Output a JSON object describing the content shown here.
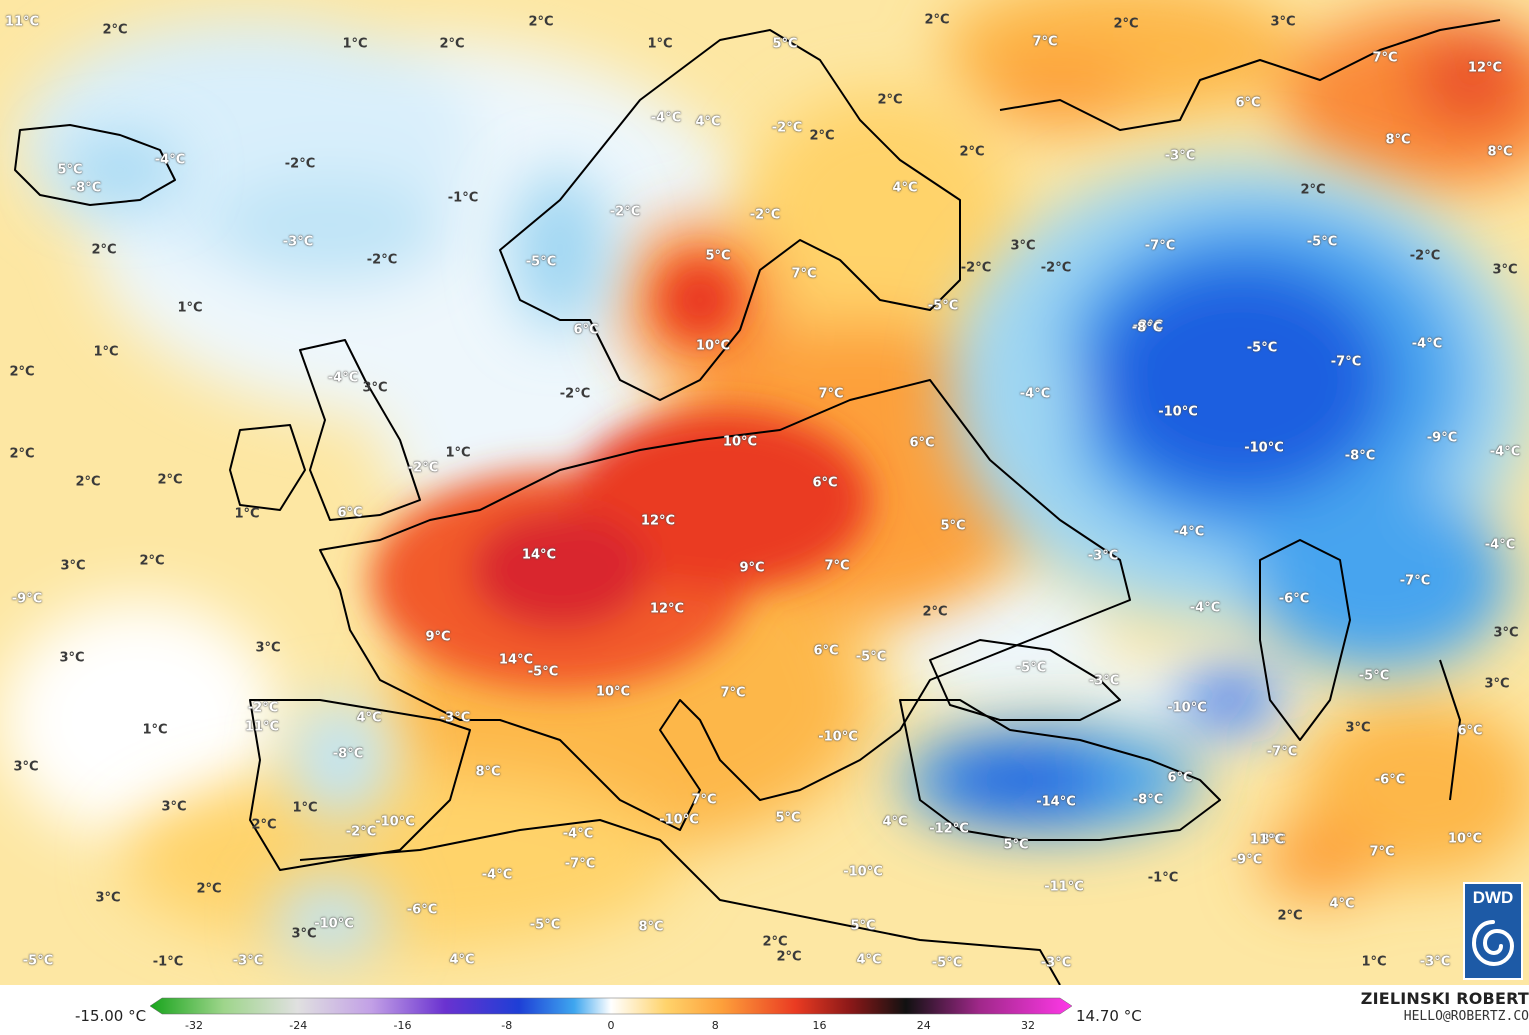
{
  "map": {
    "legend": {
      "min_label": "-15.00 °C",
      "max_label": "14.70 °C",
      "ticks": [
        "-32",
        "-24",
        "-16",
        "-8",
        "0",
        "8",
        "16",
        "24",
        "32"
      ]
    },
    "author": {
      "name": "ZIELINSKI ROBERT",
      "email": "HELLO@ROBERTZ.CO"
    },
    "logo": {
      "text": "DWD"
    },
    "colors": {
      "sea": "#eef7fc",
      "warm": "#ffd36b",
      "orange": "#fda03b",
      "hot": "#ea3b22",
      "cold": "#9fd6f2",
      "cold_deep": "#1e5fe0",
      "borders": "#000000"
    },
    "labels": [
      {
        "text": "11°C",
        "style": "light"
      },
      {
        "text": "2°C",
        "style": "dark"
      },
      {
        "text": "1°C",
        "style": "dark"
      },
      {
        "text": "2°C",
        "style": "dark"
      },
      {
        "text": "2°C",
        "style": "dark"
      },
      {
        "text": "1°C",
        "style": "dark"
      },
      {
        "text": "5°C",
        "style": "light"
      },
      {
        "text": "2°C",
        "style": "dark"
      },
      {
        "text": "7°C",
        "style": "light"
      },
      {
        "text": "2°C",
        "style": "dark"
      },
      {
        "text": "3°C",
        "style": "dark"
      },
      {
        "text": "7°C",
        "style": "light"
      },
      {
        "text": "12°C",
        "style": "light"
      },
      {
        "text": "6°C",
        "style": "light"
      },
      {
        "text": "8°C",
        "style": "light"
      },
      {
        "text": "8°C",
        "style": "light"
      },
      {
        "text": "5°C",
        "style": "light"
      },
      {
        "text": "-8°C",
        "style": "light"
      },
      {
        "text": "-4°C",
        "style": "light"
      },
      {
        "text": "-2°C",
        "style": "dark"
      },
      {
        "text": "-1°C",
        "style": "dark"
      },
      {
        "text": "-3°C",
        "style": "light"
      },
      {
        "text": "2°C",
        "style": "dark"
      },
      {
        "text": "-2°C",
        "style": "dark"
      },
      {
        "text": "-5°C",
        "style": "light"
      },
      {
        "text": "4°C",
        "style": "light"
      },
      {
        "text": "-4°C",
        "style": "light"
      },
      {
        "text": "-2°C",
        "style": "light"
      },
      {
        "text": "2°C",
        "style": "dark"
      },
      {
        "text": "2°C",
        "style": "dark"
      },
      {
        "text": "2°C",
        "style": "dark"
      },
      {
        "text": "-2°C",
        "style": "light"
      },
      {
        "text": "-2°C",
        "style": "light"
      },
      {
        "text": "4°C",
        "style": "light"
      },
      {
        "text": "-3°C",
        "style": "light"
      },
      {
        "text": "2°C",
        "style": "dark"
      },
      {
        "text": "-7°C",
        "style": "light"
      },
      {
        "text": "-5°C",
        "style": "light"
      },
      {
        "text": "-2°C",
        "style": "dark"
      },
      {
        "text": "3°C",
        "style": "dark"
      },
      {
        "text": "-8°C",
        "style": "light"
      },
      {
        "text": "5°C",
        "style": "light"
      },
      {
        "text": "7°C",
        "style": "light"
      },
      {
        "text": "3°C",
        "style": "dark"
      },
      {
        "text": "-2°C",
        "style": "dark"
      },
      {
        "text": "-2°C",
        "style": "dark"
      },
      {
        "text": "-5°C",
        "style": "light"
      },
      {
        "text": "6°C",
        "style": "light"
      },
      {
        "text": "10°C",
        "style": "light"
      },
      {
        "text": "1°C",
        "style": "dark"
      },
      {
        "text": "1°C",
        "style": "dark"
      },
      {
        "text": "-8°C",
        "style": "light"
      },
      {
        "text": "-5°C",
        "style": "light"
      },
      {
        "text": "-7°C",
        "style": "light"
      },
      {
        "text": "-4°C",
        "style": "light"
      },
      {
        "text": "2°C",
        "style": "dark"
      },
      {
        "text": "-4°C",
        "style": "light"
      },
      {
        "text": "3°C",
        "style": "dark"
      },
      {
        "text": "-2°C",
        "style": "dark"
      },
      {
        "text": "7°C",
        "style": "light"
      },
      {
        "text": "-4°C",
        "style": "light"
      },
      {
        "text": "-10°C",
        "style": "light"
      },
      {
        "text": "-10°C",
        "style": "light"
      },
      {
        "text": "-9°C",
        "style": "light"
      },
      {
        "text": "-8°C",
        "style": "light"
      },
      {
        "text": "2°C",
        "style": "dark"
      },
      {
        "text": "-2°C",
        "style": "light"
      },
      {
        "text": "1°C",
        "style": "dark"
      },
      {
        "text": "10°C",
        "style": "light"
      },
      {
        "text": "6°C",
        "style": "light"
      },
      {
        "text": "-4°C",
        "style": "light"
      },
      {
        "text": "2°C",
        "style": "dark"
      },
      {
        "text": "2°C",
        "style": "dark"
      },
      {
        "text": "1°C",
        "style": "dark"
      },
      {
        "text": "6°C",
        "style": "light"
      },
      {
        "text": "6°C",
        "style": "light"
      },
      {
        "text": "12°C",
        "style": "light"
      },
      {
        "text": "5°C",
        "style": "light"
      },
      {
        "text": "-4°C",
        "style": "light"
      },
      {
        "text": "-4°C",
        "style": "light"
      },
      {
        "text": "3°C",
        "style": "dark"
      },
      {
        "text": "2°C",
        "style": "dark"
      },
      {
        "text": "14°C",
        "style": "light"
      },
      {
        "text": "9°C",
        "style": "light"
      },
      {
        "text": "7°C",
        "style": "light"
      },
      {
        "text": "-3°C",
        "style": "light"
      },
      {
        "text": "-7°C",
        "style": "light"
      },
      {
        "text": "-9°C",
        "style": "light"
      },
      {
        "text": "12°C",
        "style": "light"
      },
      {
        "text": "2°C",
        "style": "dark"
      },
      {
        "text": "-4°C",
        "style": "light"
      },
      {
        "text": "-6°C",
        "style": "light"
      },
      {
        "text": "3°C",
        "style": "dark"
      },
      {
        "text": "9°C",
        "style": "light"
      },
      {
        "text": "3°C",
        "style": "dark"
      },
      {
        "text": "3°C",
        "style": "dark"
      },
      {
        "text": "14°C",
        "style": "light"
      },
      {
        "text": "6°C",
        "style": "light"
      },
      {
        "text": "-5°C",
        "style": "light"
      },
      {
        "text": "-5°C",
        "style": "light"
      },
      {
        "text": "-5°C",
        "style": "light"
      },
      {
        "text": "-5°C",
        "style": "light"
      },
      {
        "text": "3°C",
        "style": "dark"
      },
      {
        "text": "-3°C",
        "style": "light"
      },
      {
        "text": "10°C",
        "style": "light"
      },
      {
        "text": "7°C",
        "style": "light"
      },
      {
        "text": "-10°C",
        "style": "light"
      },
      {
        "text": "-2°C",
        "style": "light"
      },
      {
        "text": "4°C",
        "style": "light"
      },
      {
        "text": "-3°C",
        "style": "light"
      },
      {
        "text": "11°C",
        "style": "light"
      },
      {
        "text": "1°C",
        "style": "dark"
      },
      {
        "text": "-10°C",
        "style": "light"
      },
      {
        "text": "3°C",
        "style": "dark"
      },
      {
        "text": "-7°C",
        "style": "light"
      },
      {
        "text": "6°C",
        "style": "light"
      },
      {
        "text": "-8°C",
        "style": "light"
      },
      {
        "text": "3°C",
        "style": "dark"
      },
      {
        "text": "8°C",
        "style": "light"
      },
      {
        "text": "6°C",
        "style": "light"
      },
      {
        "text": "-6°C",
        "style": "light"
      },
      {
        "text": "3°C",
        "style": "dark"
      },
      {
        "text": "1°C",
        "style": "dark"
      },
      {
        "text": "-14°C",
        "style": "light"
      },
      {
        "text": "-8°C",
        "style": "light"
      },
      {
        "text": "-2°C",
        "style": "light"
      },
      {
        "text": "-10°C",
        "style": "light"
      },
      {
        "text": "8°C",
        "style": "light"
      },
      {
        "text": "7°C",
        "style": "light"
      },
      {
        "text": "-10°C",
        "style": "light"
      },
      {
        "text": "5°C",
        "style": "light"
      },
      {
        "text": "4°C",
        "style": "light"
      },
      {
        "text": "-12°C",
        "style": "light"
      },
      {
        "text": "5°C",
        "style": "light"
      },
      {
        "text": "11°C",
        "style": "light"
      },
      {
        "text": "10°C",
        "style": "light"
      },
      {
        "text": "7°C",
        "style": "light"
      },
      {
        "text": "-4°C",
        "style": "light"
      },
      {
        "text": "2°C",
        "style": "dark"
      },
      {
        "text": "-7°C",
        "style": "light"
      },
      {
        "text": "-9°C",
        "style": "light"
      },
      {
        "text": "-4°C",
        "style": "light"
      },
      {
        "text": "-1°C",
        "style": "dark"
      },
      {
        "text": "-10°C",
        "style": "light"
      },
      {
        "text": "-11°C",
        "style": "light"
      },
      {
        "text": "3°C",
        "style": "dark"
      },
      {
        "text": "2°C",
        "style": "dark"
      },
      {
        "text": "-6°C",
        "style": "light"
      },
      {
        "text": "-10°C",
        "style": "light"
      },
      {
        "text": "4°C",
        "style": "light"
      },
      {
        "text": "2°C",
        "style": "dark"
      },
      {
        "text": "3°C",
        "style": "dark"
      },
      {
        "text": "-5°C",
        "style": "light"
      },
      {
        "text": "8°C",
        "style": "light"
      },
      {
        "text": "5°C",
        "style": "light"
      },
      {
        "text": "2°C",
        "style": "dark"
      },
      {
        "text": "2°C",
        "style": "dark"
      },
      {
        "text": "-5°C",
        "style": "light"
      },
      {
        "text": "1°C",
        "style": "dark"
      },
      {
        "text": "-3°C",
        "style": "light"
      },
      {
        "text": "-1°C",
        "style": "dark"
      },
      {
        "text": "4°C",
        "style": "light"
      },
      {
        "text": "-3°C",
        "style": "light"
      },
      {
        "text": "4°C",
        "style": "light"
      },
      {
        "text": "-5°C",
        "style": "light"
      },
      {
        "text": "-3°C",
        "style": "light"
      }
    ]
  }
}
